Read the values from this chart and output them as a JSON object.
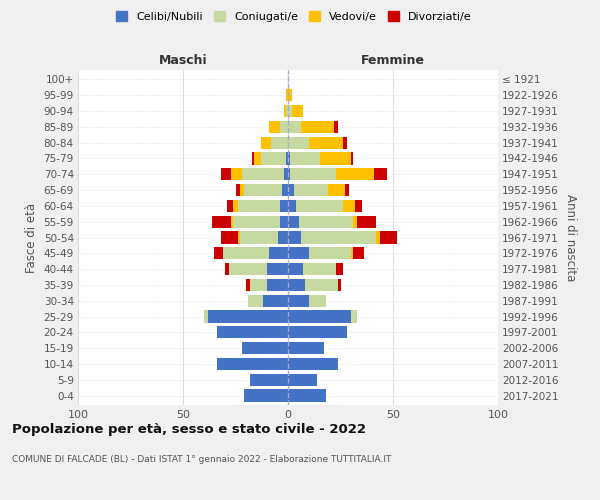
{
  "age_groups": [
    "0-4",
    "5-9",
    "10-14",
    "15-19",
    "20-24",
    "25-29",
    "30-34",
    "35-39",
    "40-44",
    "45-49",
    "50-54",
    "55-59",
    "60-64",
    "65-69",
    "70-74",
    "75-79",
    "80-84",
    "85-89",
    "90-94",
    "95-99",
    "100+"
  ],
  "birth_years": [
    "2017-2021",
    "2012-2016",
    "2007-2011",
    "2002-2006",
    "1997-2001",
    "1992-1996",
    "1987-1991",
    "1982-1986",
    "1977-1981",
    "1972-1976",
    "1967-1971",
    "1962-1966",
    "1957-1961",
    "1952-1956",
    "1947-1951",
    "1942-1946",
    "1937-1941",
    "1932-1936",
    "1927-1931",
    "1922-1926",
    "≤ 1921"
  ],
  "maschi": {
    "celibi": [
      21,
      18,
      34,
      22,
      34,
      38,
      12,
      10,
      10,
      9,
      5,
      4,
      4,
      3,
      2,
      1,
      0,
      0,
      0,
      0,
      0
    ],
    "coniugati": [
      0,
      0,
      0,
      0,
      0,
      2,
      7,
      8,
      18,
      22,
      18,
      22,
      20,
      18,
      20,
      12,
      8,
      4,
      1,
      0,
      0
    ],
    "vedovi": [
      0,
      0,
      0,
      0,
      0,
      0,
      0,
      0,
      0,
      0,
      1,
      1,
      2,
      2,
      5,
      3,
      5,
      5,
      1,
      1,
      0
    ],
    "divorziati": [
      0,
      0,
      0,
      0,
      0,
      0,
      0,
      2,
      2,
      4,
      8,
      9,
      3,
      2,
      5,
      1,
      0,
      0,
      0,
      0,
      0
    ]
  },
  "femmine": {
    "nubili": [
      18,
      14,
      24,
      17,
      28,
      30,
      10,
      8,
      7,
      10,
      6,
      5,
      4,
      3,
      1,
      1,
      0,
      0,
      0,
      0,
      0
    ],
    "coniugate": [
      0,
      0,
      0,
      0,
      0,
      3,
      8,
      16,
      16,
      20,
      36,
      26,
      22,
      16,
      22,
      14,
      10,
      6,
      2,
      0,
      0
    ],
    "vedove": [
      0,
      0,
      0,
      0,
      0,
      0,
      0,
      0,
      0,
      1,
      2,
      2,
      6,
      8,
      18,
      15,
      16,
      16,
      5,
      2,
      0
    ],
    "divorziate": [
      0,
      0,
      0,
      0,
      0,
      0,
      0,
      1,
      3,
      5,
      8,
      9,
      3,
      2,
      6,
      1,
      2,
      2,
      0,
      0,
      0
    ]
  },
  "colors": {
    "celibi_nubili": "#4472c4",
    "coniugati": "#c5d9a0",
    "vedovi": "#ffc000",
    "divorziati": "#cc0000"
  },
  "xlim": 100,
  "title": "Popolazione per età, sesso e stato civile - 2022",
  "subtitle": "COMUNE DI FALCADE (BL) - Dati ISTAT 1° gennaio 2022 - Elaborazione TUTTITALIA.IT",
  "ylabel_left": "Fasce di età",
  "ylabel_right": "Anni di nascita",
  "xlabel_maschi": "Maschi",
  "xlabel_femmine": "Femmine",
  "bg_color": "#f0f0f0",
  "plot_bg": "#ffffff"
}
